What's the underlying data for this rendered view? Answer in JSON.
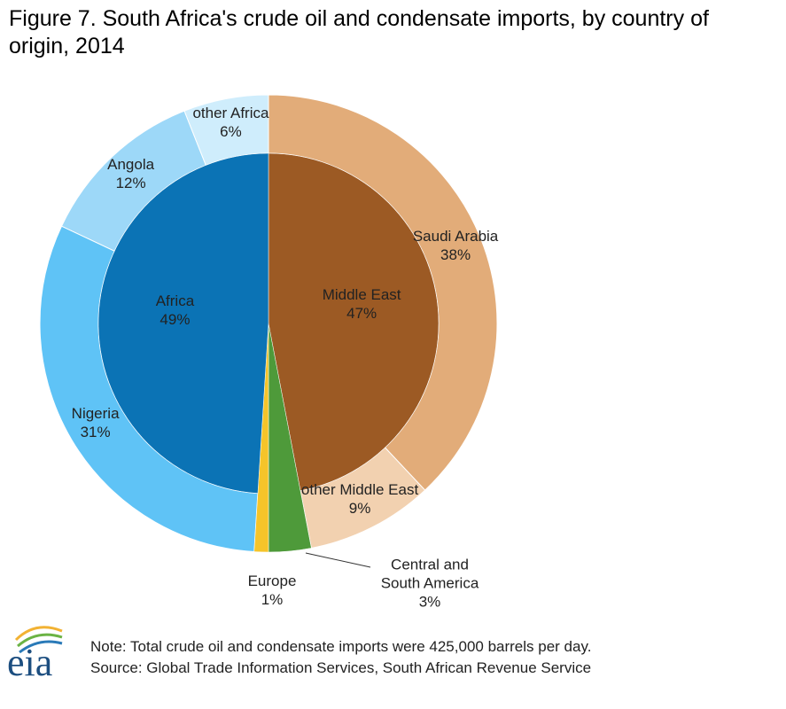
{
  "logo": "eia",
  "chart_data": {
    "type": "sunburst",
    "title": "Figure 7. South Africa's crude oil and condensate imports, by country of origin, 2014",
    "note": "Note: Total crude oil and condensate imports were 425,000 barrels per day.",
    "source": "Source:  Global Trade Information Services, South African Revenue Service",
    "rings": [
      {
        "categories": [
          "Middle East",
          "Central and South America",
          "Europe",
          "Africa"
        ],
        "values": [
          47,
          3,
          1,
          49
        ],
        "value_labels": [
          "47%",
          "3%",
          "1%",
          "49%"
        ],
        "colors": [
          "#9c5a24",
          "#4e9a3a",
          "#f5c42a",
          "#0b73b5"
        ]
      },
      {
        "categories": [
          "Saudi Arabia",
          "other Middle East",
          "Nigeria",
          "Angola",
          "other Africa"
        ],
        "values": [
          38,
          9,
          31,
          12,
          6
        ],
        "value_labels": [
          "38%",
          "9%",
          "31%",
          "12%",
          "6%"
        ],
        "parents": [
          0,
          0,
          3,
          3,
          3
        ],
        "colors": [
          "#e2ac79",
          "#f2d1b0",
          "#5fc3f6",
          "#9dd8f8",
          "#cfedfc"
        ]
      }
    ]
  }
}
